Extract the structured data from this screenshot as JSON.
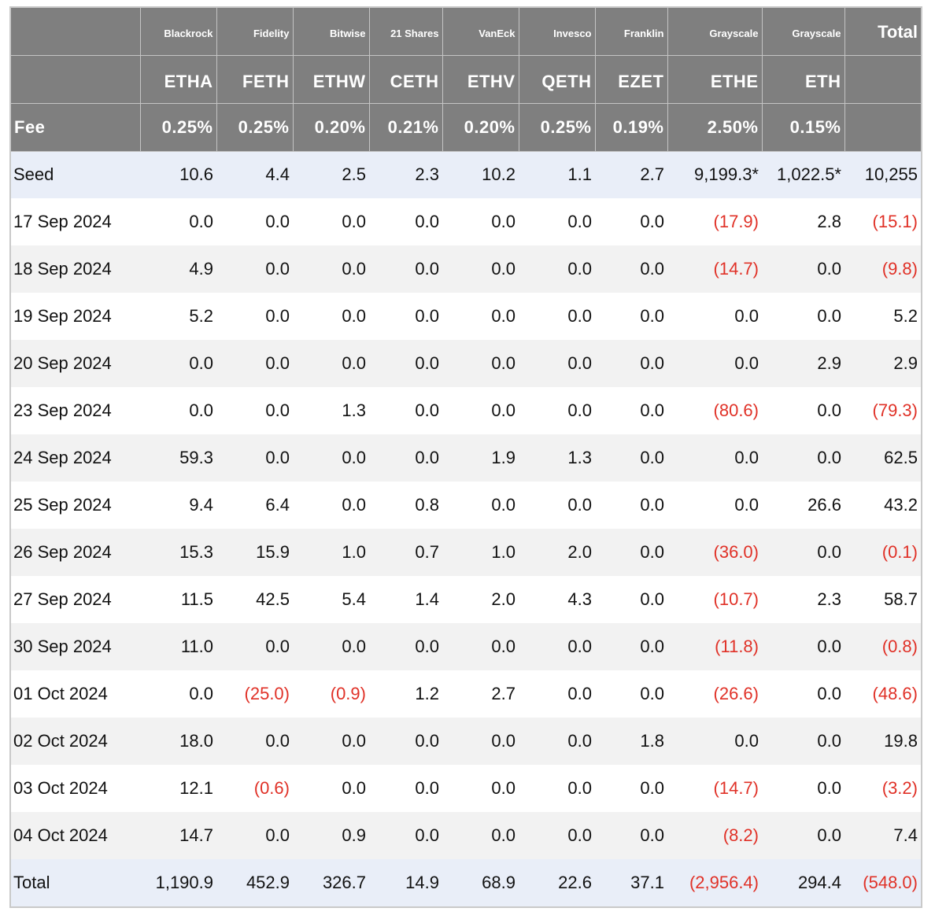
{
  "header": {
    "issuers": [
      "Blackrock",
      "Fidelity",
      "Bitwise",
      "21 Shares",
      "VanEck",
      "Invesco",
      "Franklin",
      "Grayscale",
      "Grayscale"
    ],
    "total_label": "Total",
    "tickers": [
      "ETHA",
      "FETH",
      "ETHW",
      "CETH",
      "ETHV",
      "QETH",
      "EZET",
      "ETHE",
      "ETH"
    ],
    "fee_label": "Fee",
    "fees": [
      "0.25%",
      "0.25%",
      "0.20%",
      "0.21%",
      "0.20%",
      "0.25%",
      "0.19%",
      "2.50%",
      "0.15%"
    ]
  },
  "rows": [
    {
      "label": "Seed",
      "values": [
        "10.6",
        "4.4",
        "2.5",
        "2.3",
        "10.2",
        "1.1",
        "2.7",
        "9,199.3*",
        "1,022.5*",
        "10,255"
      ]
    },
    {
      "label": "17 Sep 2024",
      "values": [
        "0.0",
        "0.0",
        "0.0",
        "0.0",
        "0.0",
        "0.0",
        "0.0",
        "(17.9)",
        "2.8",
        "(15.1)"
      ]
    },
    {
      "label": "18 Sep 2024",
      "values": [
        "4.9",
        "0.0",
        "0.0",
        "0.0",
        "0.0",
        "0.0",
        "0.0",
        "(14.7)",
        "0.0",
        "(9.8)"
      ]
    },
    {
      "label": "19 Sep 2024",
      "values": [
        "5.2",
        "0.0",
        "0.0",
        "0.0",
        "0.0",
        "0.0",
        "0.0",
        "0.0",
        "0.0",
        "5.2"
      ]
    },
    {
      "label": "20 Sep 2024",
      "values": [
        "0.0",
        "0.0",
        "0.0",
        "0.0",
        "0.0",
        "0.0",
        "0.0",
        "0.0",
        "2.9",
        "2.9"
      ]
    },
    {
      "label": "23 Sep 2024",
      "values": [
        "0.0",
        "0.0",
        "1.3",
        "0.0",
        "0.0",
        "0.0",
        "0.0",
        "(80.6)",
        "0.0",
        "(79.3)"
      ]
    },
    {
      "label": "24 Sep 2024",
      "values": [
        "59.3",
        "0.0",
        "0.0",
        "0.0",
        "1.9",
        "1.3",
        "0.0",
        "0.0",
        "0.0",
        "62.5"
      ]
    },
    {
      "label": "25 Sep 2024",
      "values": [
        "9.4",
        "6.4",
        "0.0",
        "0.8",
        "0.0",
        "0.0",
        "0.0",
        "0.0",
        "26.6",
        "43.2"
      ]
    },
    {
      "label": "26 Sep 2024",
      "values": [
        "15.3",
        "15.9",
        "1.0",
        "0.7",
        "1.0",
        "2.0",
        "0.0",
        "(36.0)",
        "0.0",
        "(0.1)"
      ]
    },
    {
      "label": "27 Sep 2024",
      "values": [
        "11.5",
        "42.5",
        "5.4",
        "1.4",
        "2.0",
        "4.3",
        "0.0",
        "(10.7)",
        "2.3",
        "58.7"
      ]
    },
    {
      "label": "30 Sep 2024",
      "values": [
        "11.0",
        "0.0",
        "0.0",
        "0.0",
        "0.0",
        "0.0",
        "0.0",
        "(11.8)",
        "0.0",
        "(0.8)"
      ]
    },
    {
      "label": "01 Oct 2024",
      "values": [
        "0.0",
        "(25.0)",
        "(0.9)",
        "1.2",
        "2.7",
        "0.0",
        "0.0",
        "(26.6)",
        "0.0",
        "(48.6)"
      ]
    },
    {
      "label": "02 Oct 2024",
      "values": [
        "18.0",
        "0.0",
        "0.0",
        "0.0",
        "0.0",
        "0.0",
        "1.8",
        "0.0",
        "0.0",
        "19.8"
      ]
    },
    {
      "label": "03 Oct 2024",
      "values": [
        "12.1",
        "(0.6)",
        "0.0",
        "0.0",
        "0.0",
        "0.0",
        "0.0",
        "(14.7)",
        "0.0",
        "(3.2)"
      ]
    },
    {
      "label": "04 Oct 2024",
      "values": [
        "14.7",
        "0.0",
        "0.9",
        "0.0",
        "0.0",
        "0.0",
        "0.0",
        "(8.2)",
        "0.0",
        "7.4"
      ]
    },
    {
      "label": "Total",
      "values": [
        "1,190.9",
        "452.9",
        "326.7",
        "14.9",
        "68.9",
        "22.6",
        "37.1",
        "(2,956.4)",
        "294.4",
        "(548.0)"
      ]
    }
  ],
  "colors": {
    "header_bg": "#7f7f7f",
    "highlight_row": "#e9eef8",
    "alt_row": "#f2f2f2",
    "negative": "#e03127"
  }
}
